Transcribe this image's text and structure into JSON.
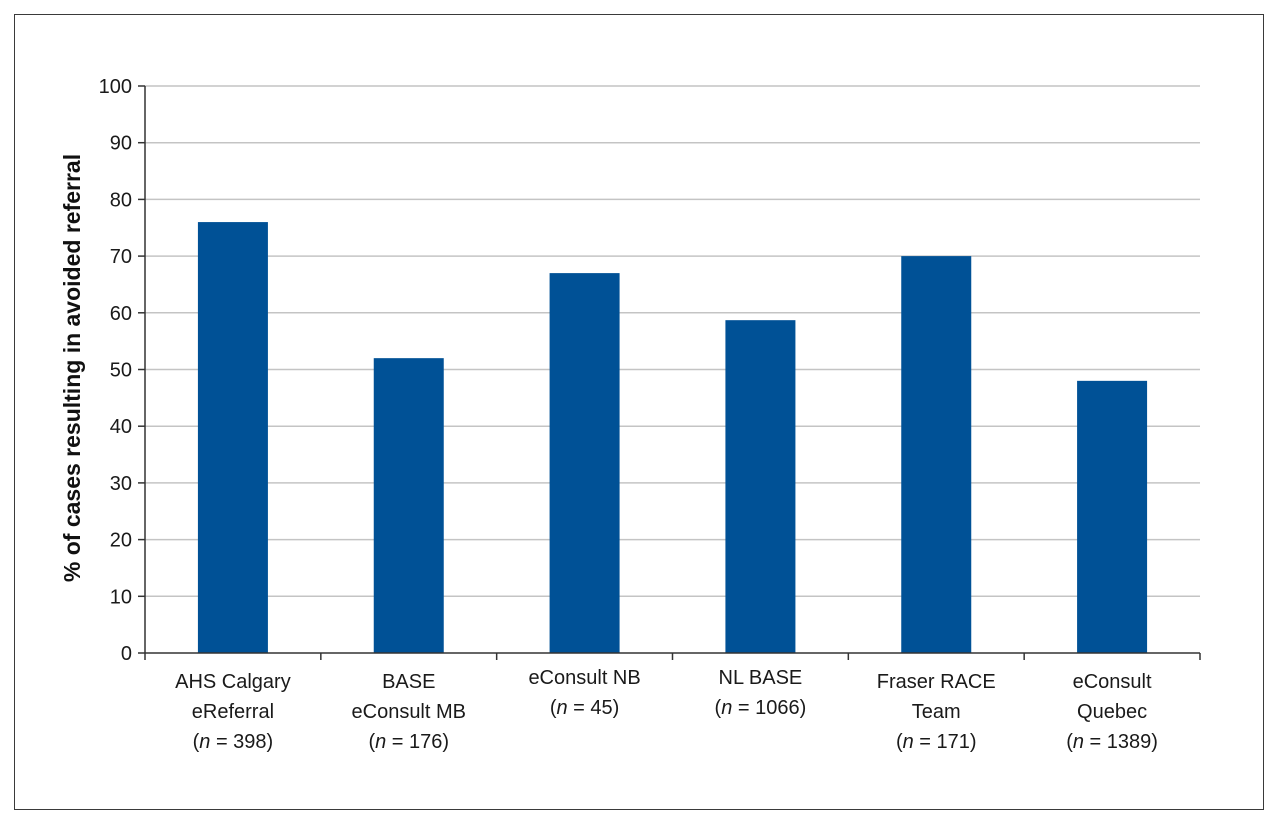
{
  "chart_data": {
    "type": "bar",
    "title": "",
    "xlabel": "",
    "ylabel": "% of cases resulting in avoided referral",
    "ylim": [
      0,
      100
    ],
    "yticks": [
      0,
      10,
      20,
      30,
      40,
      50,
      60,
      70,
      80,
      90,
      100
    ],
    "grid": true,
    "categories": [
      {
        "lines": [
          "AHS Calgary",
          "eReferral"
        ],
        "n_prefix": "(",
        "n_var": "n",
        "n_text": " = 398)"
      },
      {
        "lines": [
          "BASE",
          "eConsult MB"
        ],
        "n_prefix": "(",
        "n_var": "n",
        "n_text": " = 176)"
      },
      {
        "lines": [
          "eConsult NB"
        ],
        "n_prefix": "(",
        "n_var": "n",
        "n_text": " = 45)"
      },
      {
        "lines": [
          "NL BASE"
        ],
        "n_prefix": "(",
        "n_var": "n",
        "n_text": " = 1066)"
      },
      {
        "lines": [
          "Fraser RACE",
          "Team"
        ],
        "n_prefix": "(",
        "n_var": "n",
        "n_text": " = 171)"
      },
      {
        "lines": [
          "eConsult",
          "Quebec"
        ],
        "n_prefix": "(",
        "n_var": "n",
        "n_text": " = 1389)"
      }
    ],
    "values": [
      76,
      52,
      67,
      58.7,
      70,
      48
    ],
    "colors": {
      "bar": "#005196",
      "grid": "#c4c4c4",
      "axis": "#333333"
    }
  }
}
